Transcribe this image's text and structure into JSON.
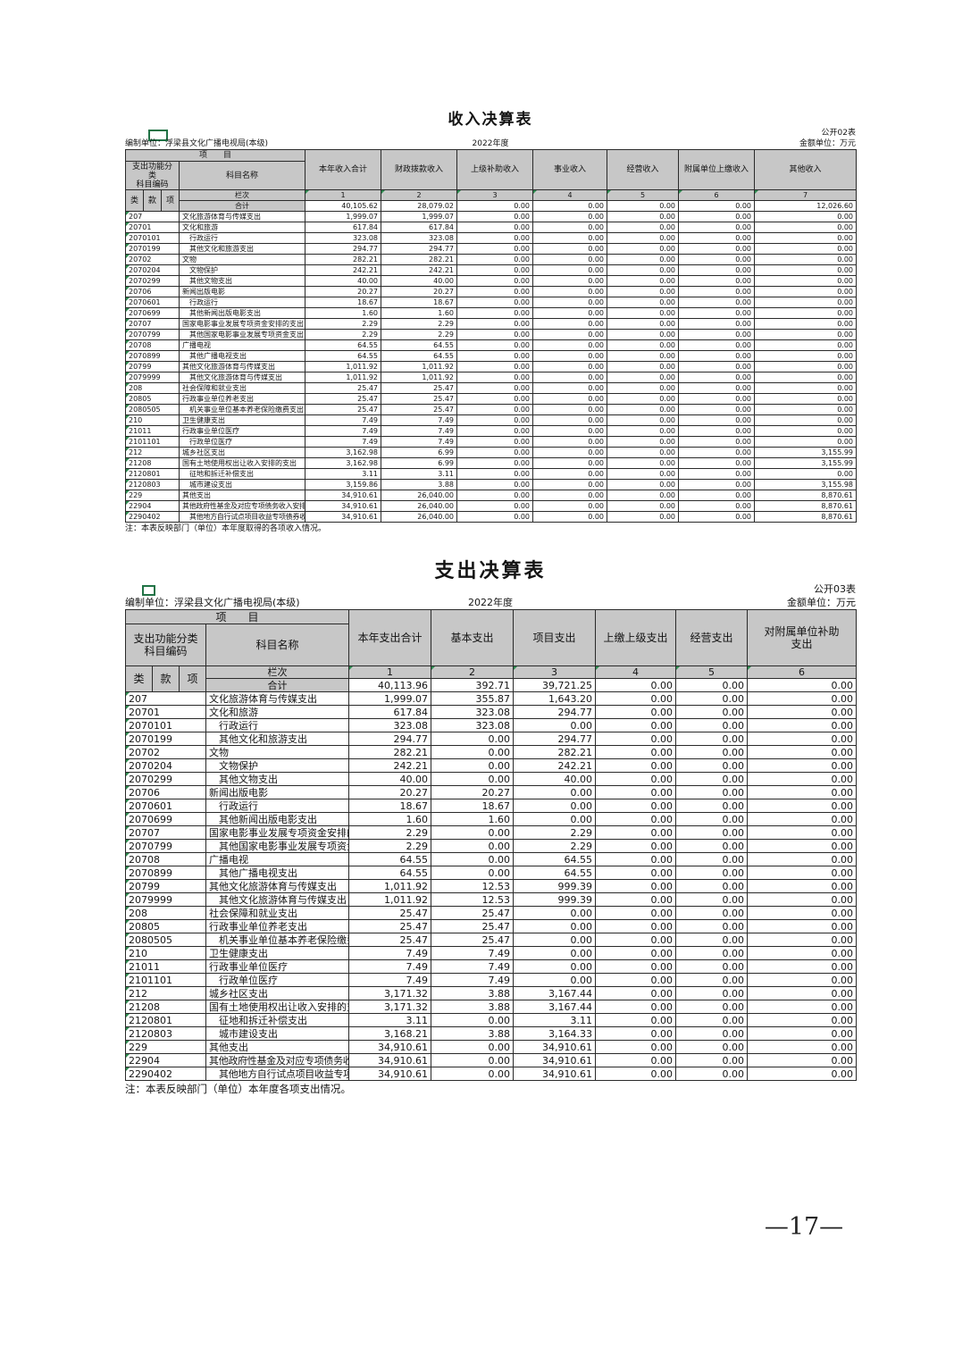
{
  "page": {
    "number": "—17—"
  },
  "income_table": {
    "title": "收入决算表",
    "public_label": "公开02表",
    "prepared_by": "编制单位：浮梁县文化广播电视局(本级)",
    "year": "2022年度",
    "unit": "金额单位：万元",
    "header": {
      "project": "项　　目",
      "code_label": "支出功能分类\n科目编码",
      "subject_label": "科目名称",
      "code_sub": [
        "类",
        "款",
        "项"
      ],
      "columns": [
        "本年收入合计",
        "财政拨款收入",
        "上级补助收入",
        "事业收入",
        "经营收入",
        "附属单位上缴收入",
        "其他收入"
      ],
      "lanci_label": "栏次",
      "lanci_numbers": [
        "1",
        "2",
        "3",
        "4",
        "5",
        "6",
        "7"
      ],
      "total_label": "合计"
    },
    "total_row": [
      "40,105.62",
      "28,079.02",
      "0.00",
      "0.00",
      "0.00",
      "0.00",
      "12,026.60"
    ],
    "rows": [
      {
        "code": "207",
        "name": "文化旅游体育与传媒支出",
        "indent": 0,
        "size": "n",
        "values": [
          "1,999.07",
          "1,999.07",
          "0.00",
          "0.00",
          "0.00",
          "0.00",
          "0.00"
        ]
      },
      {
        "code": "20701",
        "name": "文化和旅游",
        "indent": 0,
        "size": "n",
        "values": [
          "617.84",
          "617.84",
          "0.00",
          "0.00",
          "0.00",
          "0.00",
          "0.00"
        ]
      },
      {
        "code": "2070101",
        "name": "行政运行",
        "indent": 1,
        "size": "n",
        "values": [
          "323.08",
          "323.08",
          "0.00",
          "0.00",
          "0.00",
          "0.00",
          "0.00"
        ]
      },
      {
        "code": "2070199",
        "name": "其他文化和旅游支出",
        "indent": 1,
        "size": "n",
        "values": [
          "294.77",
          "294.77",
          "0.00",
          "0.00",
          "0.00",
          "0.00",
          "0.00"
        ]
      },
      {
        "code": "20702",
        "name": "文物",
        "indent": 0,
        "size": "n",
        "values": [
          "282.21",
          "282.21",
          "0.00",
          "0.00",
          "0.00",
          "0.00",
          "0.00"
        ]
      },
      {
        "code": "2070204",
        "name": "文物保护",
        "indent": 1,
        "size": "n",
        "values": [
          "242.21",
          "242.21",
          "0.00",
          "0.00",
          "0.00",
          "0.00",
          "0.00"
        ]
      },
      {
        "code": "2070299",
        "name": "其他文物支出",
        "indent": 1,
        "size": "n",
        "values": [
          "40.00",
          "40.00",
          "0.00",
          "0.00",
          "0.00",
          "0.00",
          "0.00"
        ]
      },
      {
        "code": "20706",
        "name": "新闻出版电影",
        "indent": 0,
        "size": "n",
        "values": [
          "20.27",
          "20.27",
          "0.00",
          "0.00",
          "0.00",
          "0.00",
          "0.00"
        ]
      },
      {
        "code": "2070601",
        "name": "行政运行",
        "indent": 1,
        "size": "n",
        "values": [
          "18.67",
          "18.67",
          "0.00",
          "0.00",
          "0.00",
          "0.00",
          "0.00"
        ]
      },
      {
        "code": "2070699",
        "name": "其他新闻出版电影支出",
        "indent": 1,
        "size": "n",
        "values": [
          "1.60",
          "1.60",
          "0.00",
          "0.00",
          "0.00",
          "0.00",
          "0.00"
        ]
      },
      {
        "code": "20707",
        "name": "国家电影事业发展专项资金安排的支出",
        "indent": 0,
        "size": "s",
        "values": [
          "2.29",
          "2.29",
          "0.00",
          "0.00",
          "0.00",
          "0.00",
          "0.00"
        ]
      },
      {
        "code": "2070799",
        "name": "其他国家电影事业发展专项资金支出",
        "indent": 1,
        "size": "s",
        "values": [
          "2.29",
          "2.29",
          "0.00",
          "0.00",
          "0.00",
          "0.00",
          "0.00"
        ]
      },
      {
        "code": "20708",
        "name": "广播电视",
        "indent": 0,
        "size": "n",
        "values": [
          "64.55",
          "64.55",
          "0.00",
          "0.00",
          "0.00",
          "0.00",
          "0.00"
        ]
      },
      {
        "code": "2070899",
        "name": "其他广播电视支出",
        "indent": 1,
        "size": "n",
        "values": [
          "64.55",
          "64.55",
          "0.00",
          "0.00",
          "0.00",
          "0.00",
          "0.00"
        ]
      },
      {
        "code": "20799",
        "name": "其他文化旅游体育与传媒支出",
        "indent": 0,
        "size": "n",
        "values": [
          "1,011.92",
          "1,011.92",
          "0.00",
          "0.00",
          "0.00",
          "0.00",
          "0.00"
        ]
      },
      {
        "code": "2079999",
        "name": "其他文化旅游体育与传媒支出",
        "indent": 1,
        "size": "n",
        "values": [
          "1,011.92",
          "1,011.92",
          "0.00",
          "0.00",
          "0.00",
          "0.00",
          "0.00"
        ]
      },
      {
        "code": "208",
        "name": "社会保障和就业支出",
        "indent": 0,
        "size": "n",
        "values": [
          "25.47",
          "25.47",
          "0.00",
          "0.00",
          "0.00",
          "0.00",
          "0.00"
        ]
      },
      {
        "code": "20805",
        "name": "行政事业单位养老支出",
        "indent": 0,
        "size": "n",
        "values": [
          "25.47",
          "25.47",
          "0.00",
          "0.00",
          "0.00",
          "0.00",
          "0.00"
        ]
      },
      {
        "code": "2080505",
        "name": "机关事业单位基本养老保险缴费支出",
        "indent": 1,
        "size": "s",
        "values": [
          "25.47",
          "25.47",
          "0.00",
          "0.00",
          "0.00",
          "0.00",
          "0.00"
        ]
      },
      {
        "code": "210",
        "name": "卫生健康支出",
        "indent": 0,
        "size": "n",
        "values": [
          "7.49",
          "7.49",
          "0.00",
          "0.00",
          "0.00",
          "0.00",
          "0.00"
        ]
      },
      {
        "code": "21011",
        "name": "行政事业单位医疗",
        "indent": 0,
        "size": "n",
        "values": [
          "7.49",
          "7.49",
          "0.00",
          "0.00",
          "0.00",
          "0.00",
          "0.00"
        ]
      },
      {
        "code": "2101101",
        "name": "行政单位医疗",
        "indent": 1,
        "size": "n",
        "values": [
          "7.49",
          "7.49",
          "0.00",
          "0.00",
          "0.00",
          "0.00",
          "0.00"
        ]
      },
      {
        "code": "212",
        "name": "城乡社区支出",
        "indent": 0,
        "size": "n",
        "values": [
          "3,162.98",
          "6.99",
          "0.00",
          "0.00",
          "0.00",
          "0.00",
          "3,155.99"
        ]
      },
      {
        "code": "21208",
        "name": "国有土地使用权出让收入安排的支出",
        "indent": 0,
        "size": "s",
        "values": [
          "3,162.98",
          "6.99",
          "0.00",
          "0.00",
          "0.00",
          "0.00",
          "3,155.99"
        ]
      },
      {
        "code": "2120801",
        "name": "征地和拆迁补偿支出",
        "indent": 1,
        "size": "n",
        "values": [
          "3.11",
          "3.11",
          "0.00",
          "0.00",
          "0.00",
          "0.00",
          "0.00"
        ]
      },
      {
        "code": "2120803",
        "name": "城市建设支出",
        "indent": 1,
        "size": "n",
        "values": [
          "3,159.86",
          "3.88",
          "0.00",
          "0.00",
          "0.00",
          "0.00",
          "3,155.98"
        ]
      },
      {
        "code": "229",
        "name": "其他支出",
        "indent": 0,
        "size": "n",
        "values": [
          "34,910.61",
          "26,040.00",
          "0.00",
          "0.00",
          "0.00",
          "0.00",
          "8,870.61"
        ]
      },
      {
        "code": "22904",
        "name": "其他政府性基金及对应专项债务收入安排的支出",
        "indent": 0,
        "size": "t",
        "values": [
          "34,910.61",
          "26,040.00",
          "0.00",
          "0.00",
          "0.00",
          "0.00",
          "8,870.61"
        ]
      },
      {
        "code": "2290402",
        "name": "其他地方自行试点项目收益专项债券收入安排的支出",
        "indent": 1,
        "size": "t",
        "values": [
          "34,910.61",
          "26,040.00",
          "0.00",
          "0.00",
          "0.00",
          "0.00",
          "8,870.61"
        ]
      }
    ],
    "note": "注：本表反映部门（单位）本年度取得的各项收入情况。"
  },
  "expense_table": {
    "title": "支出决算表",
    "public_label": "公开03表",
    "prepared_by": "编制单位：浮梁县文化广播电视局(本级)",
    "year": "2022年度",
    "unit": "金额单位：万元",
    "header": {
      "project": "项　　目",
      "code_label": "支出功能分类\n科目编码",
      "subject_label": "科目名称",
      "code_sub": [
        "类",
        "款",
        "项"
      ],
      "columns": [
        "本年支出合计",
        "基本支出",
        "项目支出",
        "上缴上级支出",
        "经营支出",
        "对附属单位补助\n支出"
      ],
      "lanci_label": "栏次",
      "lanci_numbers": [
        "1",
        "2",
        "3",
        "4",
        "5",
        "6"
      ],
      "total_label": "合计"
    },
    "total_row": [
      "40,113.96",
      "392.71",
      "39,721.25",
      "0.00",
      "0.00",
      "0.00"
    ],
    "rows": [
      {
        "code": "207",
        "name": "文化旅游体育与传媒支出",
        "indent": 0,
        "size": "n",
        "values": [
          "1,999.07",
          "355.87",
          "1,643.20",
          "0.00",
          "0.00",
          "0.00"
        ]
      },
      {
        "code": "20701",
        "name": "文化和旅游",
        "indent": 0,
        "size": "n",
        "values": [
          "617.84",
          "323.08",
          "294.77",
          "0.00",
          "0.00",
          "0.00"
        ]
      },
      {
        "code": "2070101",
        "name": "行政运行",
        "indent": 1,
        "size": "n",
        "values": [
          "323.08",
          "323.08",
          "0.00",
          "0.00",
          "0.00",
          "0.00"
        ]
      },
      {
        "code": "2070199",
        "name": "其他文化和旅游支出",
        "indent": 1,
        "size": "n",
        "values": [
          "294.77",
          "0.00",
          "294.77",
          "0.00",
          "0.00",
          "0.00"
        ]
      },
      {
        "code": "20702",
        "name": "文物",
        "indent": 0,
        "size": "n",
        "values": [
          "282.21",
          "0.00",
          "282.21",
          "0.00",
          "0.00",
          "0.00"
        ]
      },
      {
        "code": "2070204",
        "name": "文物保护",
        "indent": 1,
        "size": "n",
        "values": [
          "242.21",
          "0.00",
          "242.21",
          "0.00",
          "0.00",
          "0.00"
        ]
      },
      {
        "code": "2070299",
        "name": "其他文物支出",
        "indent": 1,
        "size": "n",
        "values": [
          "40.00",
          "0.00",
          "40.00",
          "0.00",
          "0.00",
          "0.00"
        ]
      },
      {
        "code": "20706",
        "name": "新闻出版电影",
        "indent": 0,
        "size": "n",
        "values": [
          "20.27",
          "20.27",
          "0.00",
          "0.00",
          "0.00",
          "0.00"
        ]
      },
      {
        "code": "2070601",
        "name": "行政运行",
        "indent": 1,
        "size": "n",
        "values": [
          "18.67",
          "18.67",
          "0.00",
          "0.00",
          "0.00",
          "0.00"
        ]
      },
      {
        "code": "2070699",
        "name": "其他新闻出版电影支出",
        "indent": 1,
        "size": "n",
        "values": [
          "1.60",
          "1.60",
          "0.00",
          "0.00",
          "0.00",
          "0.00"
        ]
      },
      {
        "code": "20707",
        "name": "国家电影事业发展专项资金安排的支出",
        "indent": 0,
        "size": "s",
        "values": [
          "2.29",
          "0.00",
          "2.29",
          "0.00",
          "0.00",
          "0.00"
        ]
      },
      {
        "code": "2070799",
        "name": "其他国家电影事业发展专项资金支出",
        "indent": 1,
        "size": "s",
        "values": [
          "2.29",
          "0.00",
          "2.29",
          "0.00",
          "0.00",
          "0.00"
        ]
      },
      {
        "code": "20708",
        "name": "广播电视",
        "indent": 0,
        "size": "n",
        "values": [
          "64.55",
          "0.00",
          "64.55",
          "0.00",
          "0.00",
          "0.00"
        ]
      },
      {
        "code": "2070899",
        "name": "其他广播电视支出",
        "indent": 1,
        "size": "n",
        "values": [
          "64.55",
          "0.00",
          "64.55",
          "0.00",
          "0.00",
          "0.00"
        ]
      },
      {
        "code": "20799",
        "name": "其他文化旅游体育与传媒支出",
        "indent": 0,
        "size": "n",
        "values": [
          "1,011.92",
          "12.53",
          "999.39",
          "0.00",
          "0.00",
          "0.00"
        ]
      },
      {
        "code": "2079999",
        "name": "其他文化旅游体育与传媒支出",
        "indent": 1,
        "size": "n",
        "values": [
          "1,011.92",
          "12.53",
          "999.39",
          "0.00",
          "0.00",
          "0.00"
        ]
      },
      {
        "code": "208",
        "name": "社会保障和就业支出",
        "indent": 0,
        "size": "n",
        "values": [
          "25.47",
          "25.47",
          "0.00",
          "0.00",
          "0.00",
          "0.00"
        ]
      },
      {
        "code": "20805",
        "name": "行政事业单位养老支出",
        "indent": 0,
        "size": "n",
        "values": [
          "25.47",
          "25.47",
          "0.00",
          "0.00",
          "0.00",
          "0.00"
        ]
      },
      {
        "code": "2080505",
        "name": "机关事业单位基本养老保险缴费支出",
        "indent": 1,
        "size": "s",
        "values": [
          "25.47",
          "25.47",
          "0.00",
          "0.00",
          "0.00",
          "0.00"
        ]
      },
      {
        "code": "210",
        "name": "卫生健康支出",
        "indent": 0,
        "size": "n",
        "values": [
          "7.49",
          "7.49",
          "0.00",
          "0.00",
          "0.00",
          "0.00"
        ]
      },
      {
        "code": "21011",
        "name": "行政事业单位医疗",
        "indent": 0,
        "size": "n",
        "values": [
          "7.49",
          "7.49",
          "0.00",
          "0.00",
          "0.00",
          "0.00"
        ]
      },
      {
        "code": "2101101",
        "name": "行政单位医疗",
        "indent": 1,
        "size": "n",
        "values": [
          "7.49",
          "7.49",
          "0.00",
          "0.00",
          "0.00",
          "0.00"
        ]
      },
      {
        "code": "212",
        "name": "城乡社区支出",
        "indent": 0,
        "size": "n",
        "values": [
          "3,171.32",
          "3.88",
          "3,167.44",
          "0.00",
          "0.00",
          "0.00"
        ]
      },
      {
        "code": "21208",
        "name": "国有土地使用权出让收入安排的支出",
        "indent": 0,
        "size": "s",
        "values": [
          "3,171.32",
          "3.88",
          "3,167.44",
          "0.00",
          "0.00",
          "0.00"
        ]
      },
      {
        "code": "2120801",
        "name": "征地和拆迁补偿支出",
        "indent": 1,
        "size": "n",
        "values": [
          "3.11",
          "0.00",
          "3.11",
          "0.00",
          "0.00",
          "0.00"
        ]
      },
      {
        "code": "2120803",
        "name": "城市建设支出",
        "indent": 1,
        "size": "n",
        "values": [
          "3,168.21",
          "3.88",
          "3,164.33",
          "0.00",
          "0.00",
          "0.00"
        ]
      },
      {
        "code": "229",
        "name": "其他支出",
        "indent": 0,
        "size": "n",
        "values": [
          "34,910.61",
          "0.00",
          "34,910.61",
          "0.00",
          "0.00",
          "0.00"
        ]
      },
      {
        "code": "22904",
        "name": "其他政府性基金及对应专项债务收入安排的支出",
        "indent": 0,
        "size": "t",
        "values": [
          "34,910.61",
          "0.00",
          "34,910.61",
          "0.00",
          "0.00",
          "0.00"
        ]
      },
      {
        "code": "2290402",
        "name": "其他地方自行试点项目收益专项债券收入安排的支出",
        "indent": 1,
        "size": "t",
        "values": [
          "34,910.61",
          "0.00",
          "34,910.61",
          "0.00",
          "0.00",
          "0.00"
        ]
      }
    ],
    "note": "注：本表反映部门（单位）本年度各项支出情况。"
  }
}
